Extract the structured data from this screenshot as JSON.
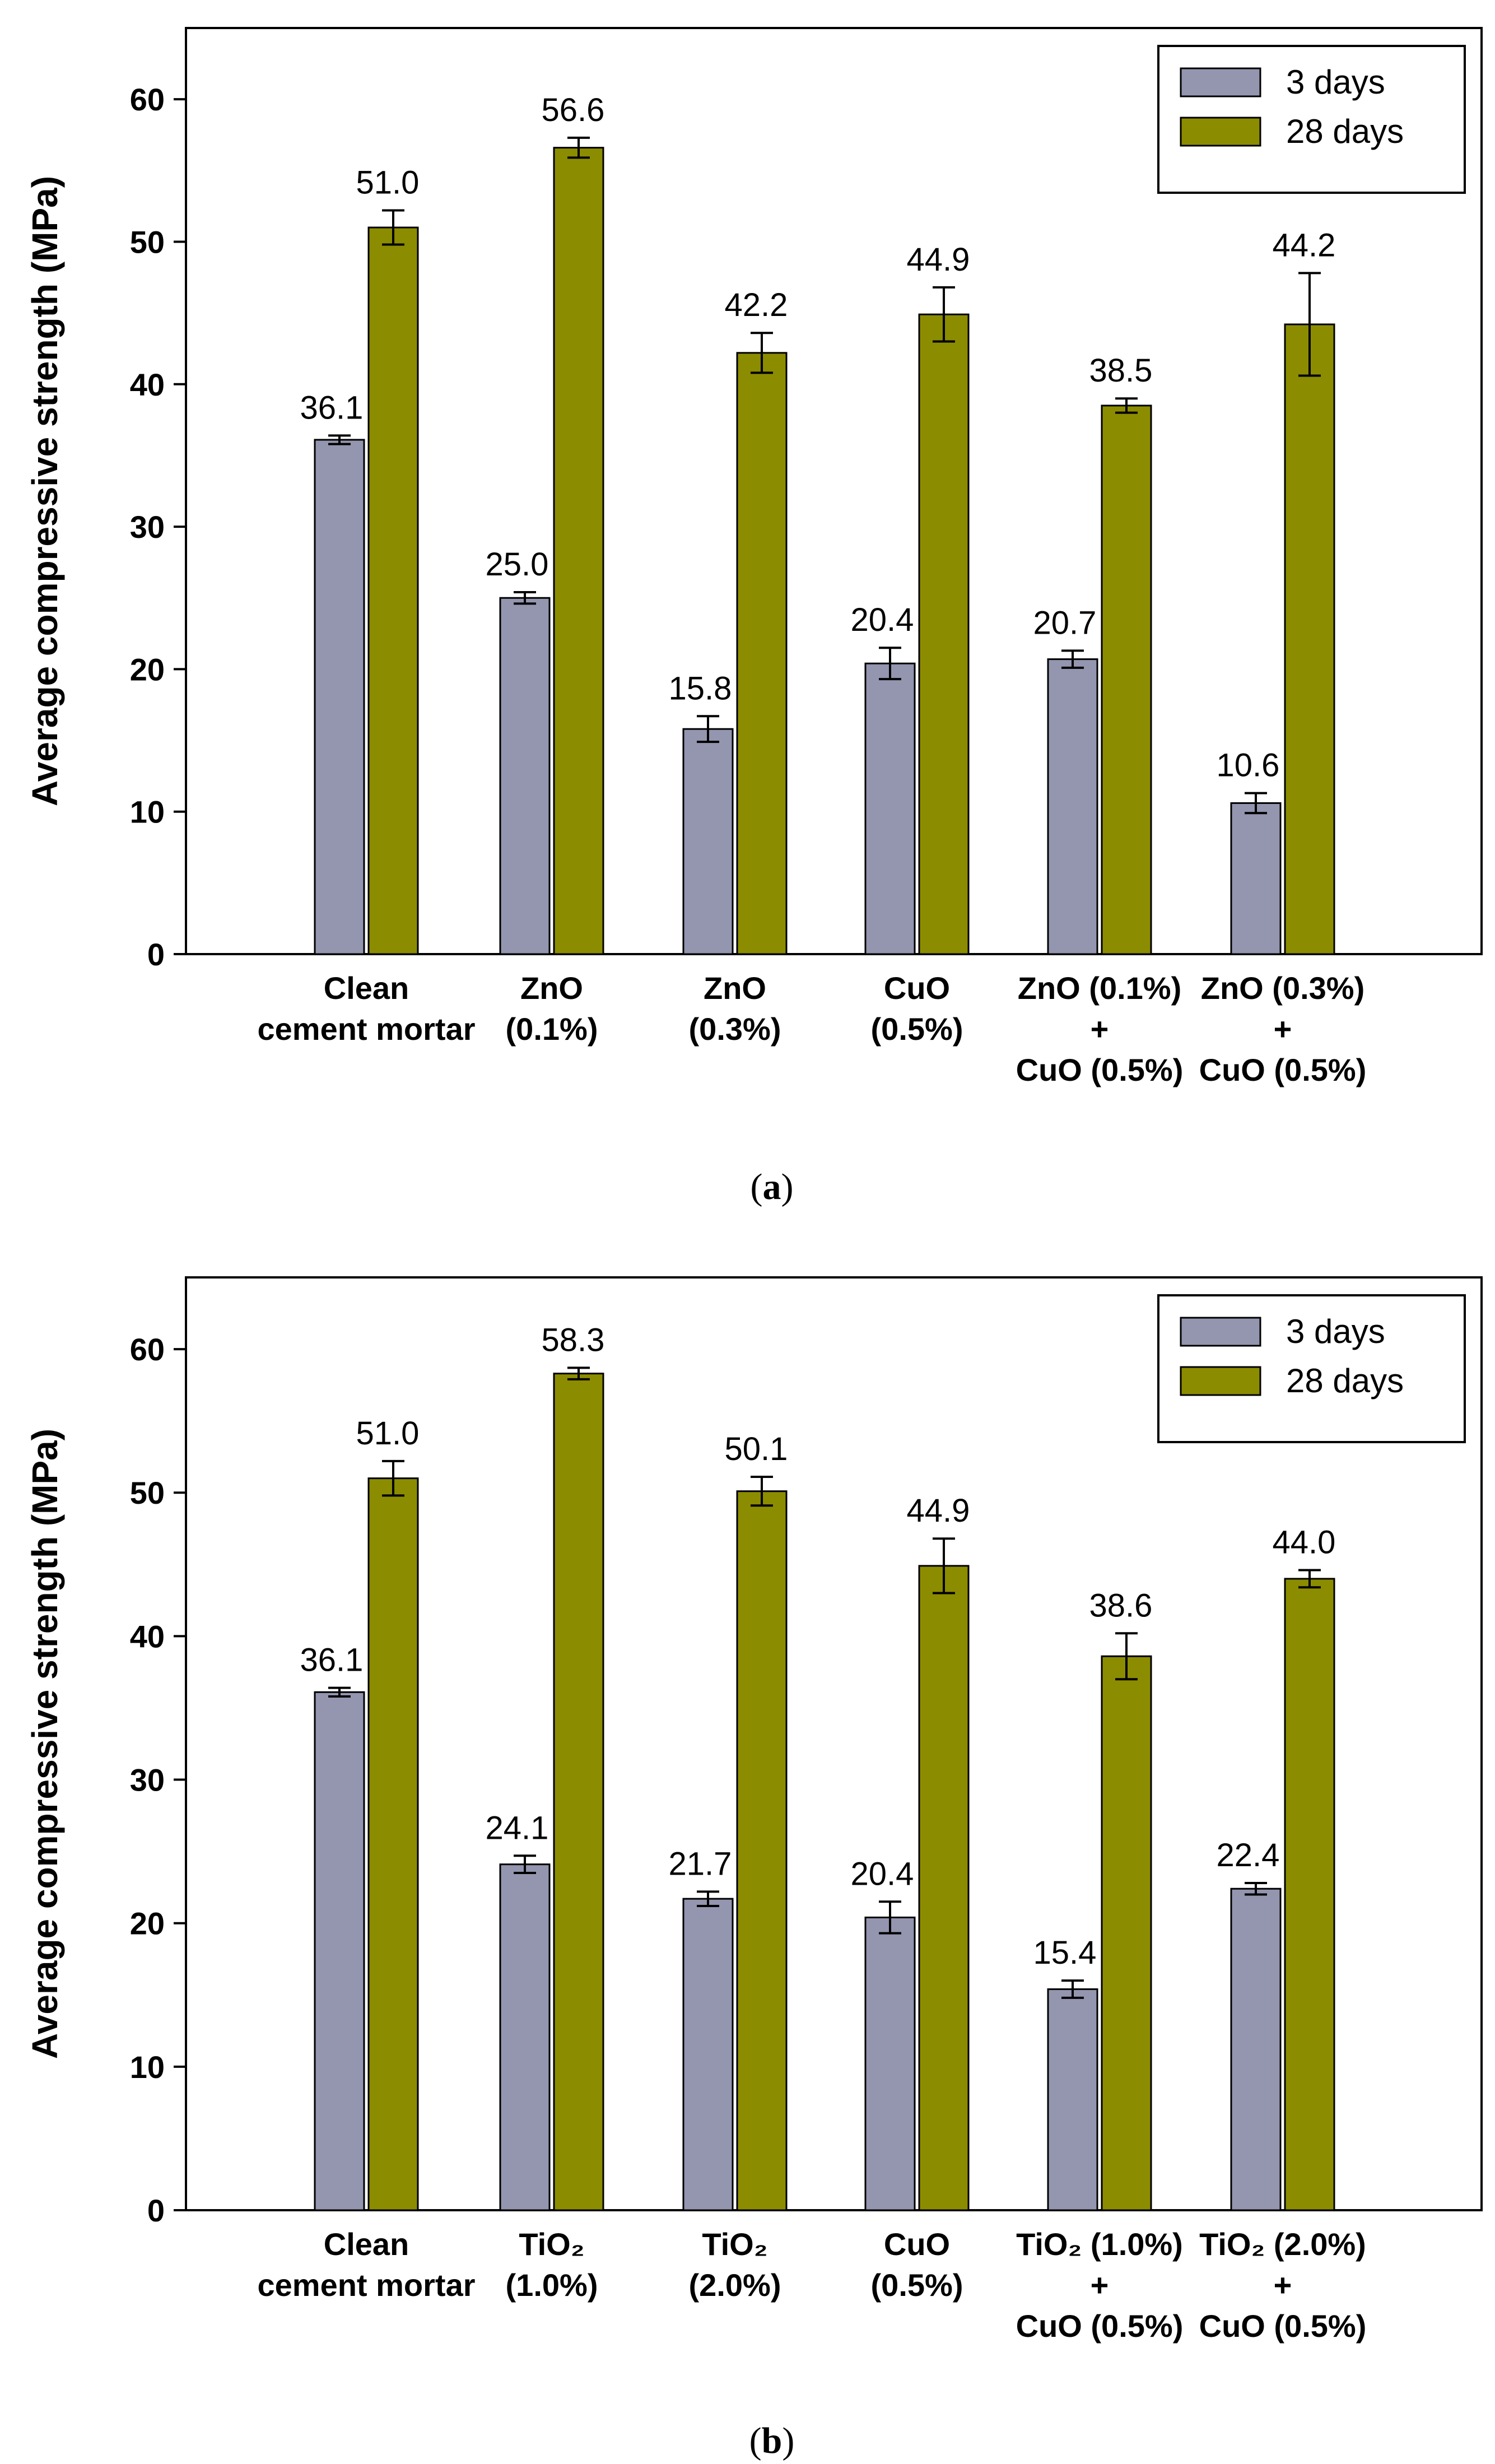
{
  "colors": {
    "series_3days": "#9496b0",
    "series_28days": "#8c8c00",
    "axis": "#000000"
  },
  "chart_data": [
    {
      "type": "bar",
      "panel_caption": {
        "open": "(",
        "letter": "a",
        "close": ")"
      },
      "ylabel": "Average compressive strength (MPa)",
      "ylim": [
        0,
        65
      ],
      "yticks": [
        0,
        10,
        20,
        30,
        40,
        50,
        60
      ],
      "legend_placement": "top-right",
      "categories": [
        {
          "lines": [
            "Clean",
            "cement mortar"
          ]
        },
        {
          "lines": [
            "ZnO",
            "(0.1%)"
          ]
        },
        {
          "lines": [
            "ZnO",
            "(0.3%)"
          ]
        },
        {
          "lines": [
            "CuO",
            "(0.5%)"
          ]
        },
        {
          "lines": [
            "ZnO (0.1%)",
            "+",
            "CuO (0.5%)"
          ]
        },
        {
          "lines": [
            "ZnO (0.3%)",
            "+",
            "CuO (0.5%)"
          ]
        }
      ],
      "series": [
        {
          "name": "3 days",
          "values": [
            36.1,
            25.0,
            15.8,
            20.4,
            20.7,
            10.6
          ],
          "errors": [
            0.3,
            0.4,
            0.9,
            1.1,
            0.6,
            0.7
          ],
          "labels": [
            "36.1",
            "25.0",
            "15.8",
            "20.4",
            "20.7",
            "10.6"
          ]
        },
        {
          "name": "28 days",
          "values": [
            51.0,
            56.6,
            42.2,
            44.9,
            38.5,
            44.2
          ],
          "errors": [
            1.2,
            0.7,
            1.4,
            1.9,
            0.5,
            3.6
          ],
          "labels": [
            "51.0",
            "56.6",
            "42.2",
            "44.9",
            "38.5",
            "44.2"
          ]
        }
      ]
    },
    {
      "type": "bar",
      "panel_caption": {
        "open": "(",
        "letter": "b",
        "close": ")"
      },
      "ylabel": "Average compressive strength (MPa)",
      "ylim": [
        0,
        65
      ],
      "yticks": [
        0,
        10,
        20,
        30,
        40,
        50,
        60
      ],
      "legend_placement": "top-right",
      "categories": [
        {
          "lines": [
            "Clean",
            "cement mortar"
          ]
        },
        {
          "lines": [
            "TiO₂",
            "(1.0%)"
          ]
        },
        {
          "lines": [
            "TiO₂",
            "(2.0%)"
          ]
        },
        {
          "lines": [
            "CuO",
            "(0.5%)"
          ]
        },
        {
          "lines": [
            "TiO₂ (1.0%)",
            "+",
            "CuO (0.5%)"
          ]
        },
        {
          "lines": [
            "TiO₂ (2.0%)",
            "+",
            "CuO (0.5%)"
          ]
        }
      ],
      "series": [
        {
          "name": "3 days",
          "values": [
            36.1,
            24.1,
            21.7,
            20.4,
            15.4,
            22.4
          ],
          "errors": [
            0.3,
            0.6,
            0.5,
            1.1,
            0.6,
            0.4
          ],
          "labels": [
            "36.1",
            "24.1",
            "21.7",
            "20.4",
            "15.4",
            "22.4"
          ]
        },
        {
          "name": "28 days",
          "values": [
            51.0,
            58.3,
            50.1,
            44.9,
            38.6,
            44.0
          ],
          "errors": [
            1.2,
            0.4,
            1.0,
            1.9,
            1.6,
            0.6
          ],
          "labels": [
            "51.0",
            "58.3",
            "50.1",
            "44.9",
            "38.6",
            "44.0"
          ]
        }
      ]
    }
  ]
}
